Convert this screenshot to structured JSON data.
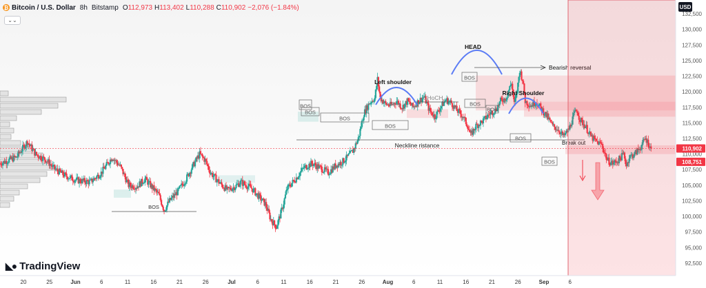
{
  "header": {
    "symbol": "Bitcoin / U.S. Dollar",
    "timeframe": "8h",
    "exchange": "Bitstamp",
    "open_label": "O",
    "open": "112,973",
    "high_label": "H",
    "high": "113,402",
    "low_label": "L",
    "low": "110,288",
    "close_label": "C",
    "close": "110,902",
    "change": "−2,076 (−1.84%)",
    "collapse_glyph": "⌄⌄"
  },
  "currency": "USD",
  "brand": "TradingView",
  "colors": {
    "up": "#26a69a",
    "down": "#f23645",
    "pattern": "#5b7cf5",
    "highlight": "#f7a6ab"
  },
  "chart_data": {
    "type": "candlestick",
    "y_ticks": [
      "132,500",
      "130,000",
      "127,500",
      "125,000",
      "122,500",
      "120,000",
      "117,500",
      "115,000",
      "112,500",
      "110,000",
      "107,500",
      "105,000",
      "102,500",
      "100,000",
      "97,500",
      "95,000",
      "92,500"
    ],
    "y_tick_values": [
      132500,
      130000,
      127500,
      125000,
      122500,
      120000,
      117500,
      115000,
      112500,
      110000,
      107500,
      105000,
      102500,
      100000,
      97500,
      95000,
      92500
    ],
    "x_ticks": [
      "20",
      "25",
      "Jun",
      "6",
      "11",
      "16",
      "21",
      "26",
      "Jul",
      "6",
      "11",
      "16",
      "21",
      "26",
      "Aug",
      "6",
      "11",
      "16",
      "21",
      "26",
      "Sep",
      "6"
    ],
    "price_labels": [
      {
        "text": "110,902",
        "value": 110902,
        "color": "#f23645"
      },
      {
        "text": "108,751",
        "value": 108751,
        "color": "#f23645"
      }
    ],
    "annotations": {
      "head": "HEAD",
      "left_shoulder": "Left shoulder",
      "right_shoulder": "Right Shoulder",
      "neckline": "Neckline ristance",
      "bearish": "Bearish reversal",
      "breakout": "Break out",
      "choch": "CHoCH",
      "bos": "BOS"
    },
    "path": [
      [
        0,
        108500
      ],
      [
        6,
        109500
      ],
      [
        10,
        112000
      ],
      [
        13,
        110000
      ],
      [
        17,
        109000
      ],
      [
        20,
        107600
      ],
      [
        24,
        106500
      ],
      [
        28,
        105800
      ],
      [
        33,
        105500
      ],
      [
        37,
        107000
      ],
      [
        41,
        109500
      ],
      [
        44,
        108000
      ],
      [
        47,
        105000
      ],
      [
        50,
        104800
      ],
      [
        53,
        106000
      ],
      [
        58,
        103500
      ],
      [
        60,
        101000
      ],
      [
        62,
        102500
      ],
      [
        65,
        104000
      ],
      [
        68,
        106000
      ],
      [
        71,
        108500
      ],
      [
        73,
        110000
      ],
      [
        75,
        109000
      ],
      [
        77,
        107000
      ],
      [
        80,
        105500
      ],
      [
        83,
        104200
      ],
      [
        86,
        104800
      ],
      [
        88,
        105500
      ],
      [
        92,
        104500
      ],
      [
        95,
        103000
      ],
      [
        97,
        102000
      ],
      [
        99,
        99500
      ],
      [
        101,
        98300
      ],
      [
        103,
        101000
      ],
      [
        105,
        104500
      ],
      [
        108,
        106000
      ],
      [
        111,
        107800
      ],
      [
        114,
        108500
      ],
      [
        117,
        107800
      ],
      [
        120,
        107000
      ],
      [
        123,
        108300
      ],
      [
        125,
        108700
      ],
      [
        127,
        109500
      ],
      [
        129,
        110500
      ],
      [
        131,
        112500
      ],
      [
        133,
        116500
      ],
      [
        135,
        118200
      ],
      [
        137,
        119000
      ],
      [
        138,
        122000
      ],
      [
        139,
        119000
      ],
      [
        141,
        118000
      ],
      [
        143,
        117800
      ],
      [
        145,
        118500
      ],
      [
        147,
        117500
      ],
      [
        149,
        118500
      ],
      [
        151,
        117500
      ],
      [
        153,
        118500
      ],
      [
        155,
        119200
      ],
      [
        157,
        117000
      ],
      [
        159,
        116000
      ],
      [
        161,
        117500
      ],
      [
        163,
        118700
      ],
      [
        165,
        118200
      ],
      [
        167,
        117000
      ],
      [
        169,
        116200
      ],
      [
        171,
        114500
      ],
      [
        172,
        113000
      ],
      [
        174,
        114500
      ],
      [
        177,
        115500
      ],
      [
        179,
        116500
      ],
      [
        181,
        117000
      ],
      [
        183,
        118500
      ],
      [
        185,
        119000
      ],
      [
        187,
        121500
      ],
      [
        188,
        118000
      ],
      [
        189,
        120000
      ],
      [
        190,
        123500
      ],
      [
        191,
        122000
      ],
      [
        192,
        118500
      ],
      [
        194,
        117800
      ],
      [
        196,
        118400
      ],
      [
        198,
        117200
      ],
      [
        200,
        116000
      ],
      [
        202,
        114500
      ],
      [
        204,
        114000
      ],
      [
        206,
        112800
      ],
      [
        208,
        114000
      ],
      [
        210,
        116500
      ],
      [
        211,
        117000
      ],
      [
        212,
        115500
      ],
      [
        214,
        114500
      ],
      [
        216,
        112800
      ],
      [
        218,
        112000
      ],
      [
        220,
        111500
      ],
      [
        222,
        109000
      ],
      [
        224,
        108500
      ],
      [
        226,
        109000
      ],
      [
        228,
        110000
      ],
      [
        229,
        108200
      ],
      [
        230,
        109500
      ],
      [
        232,
        110000
      ],
      [
        234,
        111000
      ],
      [
        236,
        112500
      ],
      [
        238,
        110902
      ]
    ],
    "price_range": [
      90500,
      134500
    ],
    "day_range": [
      0,
      247
    ]
  }
}
